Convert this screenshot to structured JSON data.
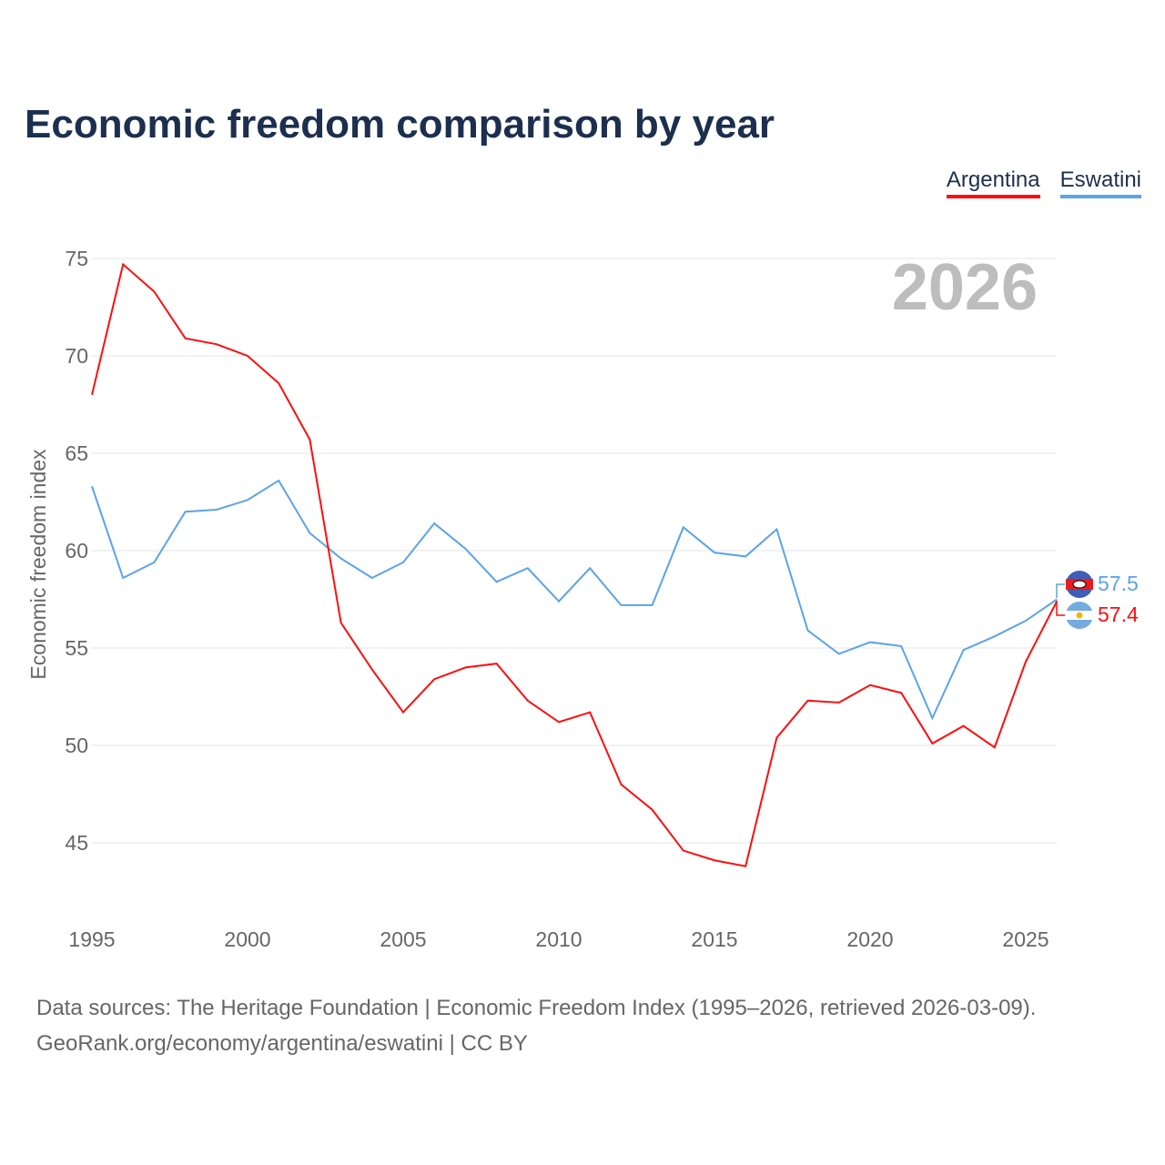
{
  "title": "Economic freedom comparison by year",
  "source_line1": "Data sources: The Heritage Foundation | Economic Freedom Index (1995–2026, retrieved 2026-03-09).",
  "source_line2": "GeoRank.org/economy/argentina/eswatini | CC BY",
  "chart_data": {
    "type": "line",
    "title": "Economic freedom comparison by year",
    "xlabel": "",
    "ylabel": "Economic freedom index",
    "year_label": "2026",
    "x": [
      1995,
      1996,
      1997,
      1998,
      1999,
      2000,
      2001,
      2002,
      2003,
      2004,
      2005,
      2006,
      2007,
      2008,
      2009,
      2010,
      2011,
      2012,
      2013,
      2014,
      2015,
      2016,
      2017,
      2018,
      2019,
      2020,
      2021,
      2022,
      2023,
      2024,
      2025,
      2026
    ],
    "xticks": [
      1995,
      2000,
      2005,
      2010,
      2015,
      2020,
      2025
    ],
    "yticks": [
      45,
      50,
      55,
      60,
      65,
      70,
      75
    ],
    "ylim": [
      41.5,
      77
    ],
    "xlim": [
      1995,
      2026
    ],
    "grid": true,
    "legend_position": "top-right",
    "series": [
      {
        "name": "Argentina",
        "color": "#ff0d0d",
        "end_label": "57.4",
        "values": [
          68.0,
          74.7,
          73.3,
          70.9,
          70.6,
          70.0,
          68.6,
          65.7,
          56.3,
          53.9,
          51.7,
          53.4,
          54.0,
          54.2,
          52.3,
          51.2,
          51.7,
          48.0,
          46.7,
          44.6,
          44.1,
          43.8,
          50.4,
          52.3,
          52.2,
          53.1,
          52.7,
          50.1,
          51.0,
          49.9,
          54.3,
          57.4
        ]
      },
      {
        "name": "Eswatini",
        "color": "#5ba3ea",
        "end_label": "57.5",
        "values": [
          63.3,
          58.6,
          59.4,
          62.0,
          62.1,
          62.6,
          63.6,
          60.9,
          59.6,
          58.6,
          59.4,
          61.4,
          60.1,
          58.4,
          59.1,
          57.4,
          59.1,
          57.2,
          57.2,
          61.2,
          59.9,
          59.7,
          61.1,
          55.9,
          54.7,
          55.3,
          55.1,
          51.4,
          54.9,
          55.6,
          56.4,
          57.5
        ]
      }
    ]
  }
}
